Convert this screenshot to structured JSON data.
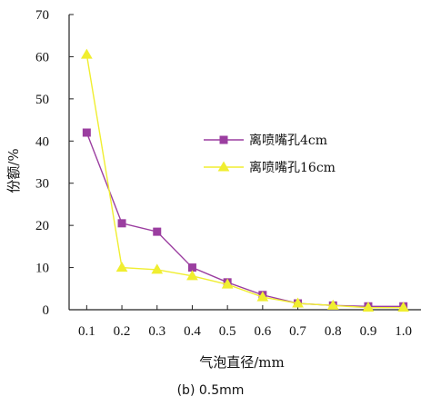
{
  "caption": "(b) 0.5mm",
  "colors": {
    "series_1": "#9b3ea0",
    "series_2": "#f0ee30",
    "axis": "#222222"
  },
  "chart_data": {
    "type": "line",
    "title": "",
    "xlabel": "气泡直径/mm",
    "ylabel": "份额/%",
    "x": [
      0.1,
      0.2,
      0.3,
      0.4,
      0.5,
      0.6,
      0.7,
      0.8,
      0.9,
      1.0
    ],
    "x_tick_labels": [
      "0.1",
      "0.2",
      "0.3",
      "0.4",
      "0.5",
      "0.6",
      "0.7",
      "0.8",
      "0.9",
      "1.0"
    ],
    "y_ticks": [
      0,
      10,
      20,
      30,
      40,
      50,
      60,
      70
    ],
    "ylim": [
      0,
      70
    ],
    "xlim": [
      0.05,
      1.05
    ],
    "grid": false,
    "legend_position": "middle-right",
    "series": [
      {
        "name": "离喷嘴孔4cm",
        "marker": "square",
        "color": "#9b3ea0",
        "values": [
          42,
          20.5,
          18.5,
          10,
          6.5,
          3.5,
          1.5,
          1,
          0.8,
          0.8
        ]
      },
      {
        "name": "离喷嘴孔16cm",
        "marker": "triangle",
        "color": "#f0ee30",
        "values": [
          60.5,
          10,
          9.5,
          8,
          6,
          3,
          1.5,
          1,
          0.5,
          0.5
        ]
      }
    ]
  }
}
